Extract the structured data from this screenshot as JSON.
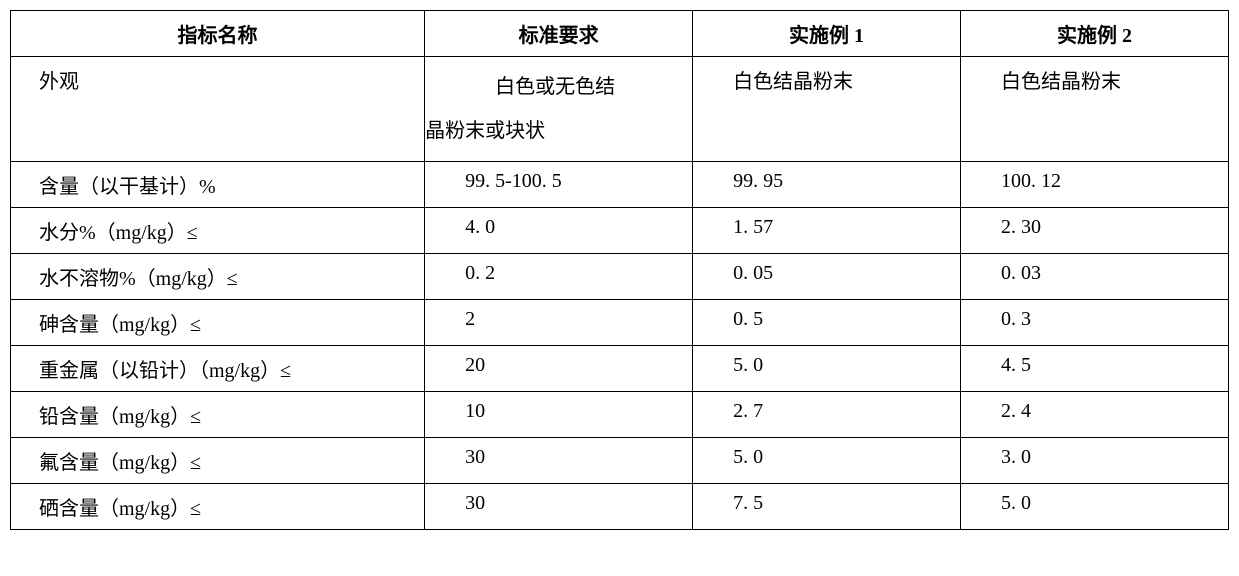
{
  "table": {
    "columns": [
      {
        "key": "name",
        "label": "指标名称"
      },
      {
        "key": "standard",
        "label": "标准要求"
      },
      {
        "key": "ex1",
        "label": "实施例 1"
      },
      {
        "key": "ex2",
        "label": "实施例 2"
      }
    ],
    "column_widths_pct": [
      34,
      22,
      22,
      22
    ],
    "border_color": "#000000",
    "background_color": "#ffffff",
    "text_color": "#000000",
    "font_family": "SimSun",
    "font_size_pt": 15,
    "header_font_weight": "bold",
    "rows": [
      {
        "name": "外观",
        "standard_multiline": {
          "line1": "白色或无色结",
          "line2": "晶粉末或块状"
        },
        "ex1": "白色结晶粉末",
        "ex2": "白色结晶粉末"
      },
      {
        "name": "含量（以干基计）%",
        "standard": "99. 5-100. 5",
        "ex1": "99. 95",
        "ex2": "100. 12"
      },
      {
        "name": "水分%（mg/kg）≤",
        "standard": "4. 0",
        "ex1": "1. 57",
        "ex2": "2. 30"
      },
      {
        "name": "水不溶物%（mg/kg）≤",
        "standard": "0. 2",
        "ex1": "0. 05",
        "ex2": "0. 03"
      },
      {
        "name": "砷含量（mg/kg）≤",
        "standard": "2",
        "ex1": "0. 5",
        "ex2": "0. 3"
      },
      {
        "name": "重金属（以铅计）（mg/kg）≤",
        "standard": "20",
        "ex1": "5. 0",
        "ex2": "4. 5"
      },
      {
        "name": "铅含量（mg/kg）≤",
        "standard": "10",
        "ex1": "2. 7",
        "ex2": "2. 4"
      },
      {
        "name": "氟含量（mg/kg）≤",
        "standard": "30",
        "ex1": "5. 0",
        "ex2": "3. 0"
      },
      {
        "name": "硒含量（mg/kg）≤",
        "standard": "30",
        "ex1": "7. 5",
        "ex2": "5. 0"
      }
    ]
  }
}
